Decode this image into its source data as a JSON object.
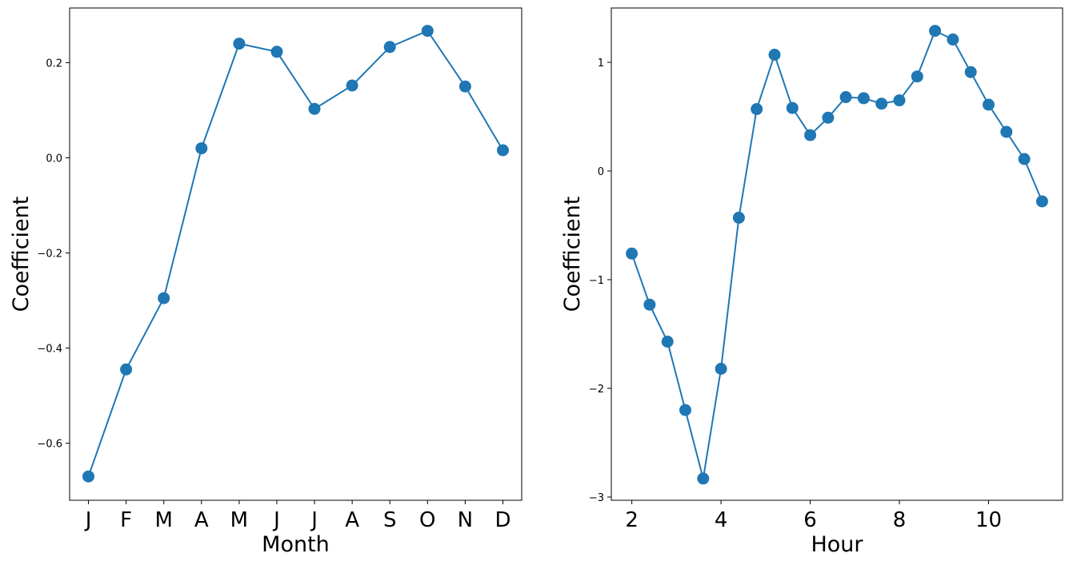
{
  "colors": {
    "series": "#1f77b4",
    "frame": "#000000",
    "background": "#ffffff"
  },
  "chart_data": [
    {
      "type": "line",
      "markers": "circle",
      "categories": [
        "J",
        "F",
        "M",
        "A",
        "M",
        "J",
        "J",
        "A",
        "S",
        "O",
        "N",
        "D"
      ],
      "values": [
        -0.67,
        -0.445,
        -0.295,
        0.02,
        0.24,
        0.223,
        0.103,
        0.152,
        0.233,
        0.267,
        0.15,
        0.016
      ],
      "xlabel": "Month",
      "ylabel": "Coefficient",
      "ylim": [
        -0.72,
        0.315
      ],
      "yticks": [
        -0.6,
        -0.4,
        -0.2,
        0.0,
        0.2
      ],
      "ytick_labels": [
        "−0.6",
        "−0.4",
        "−0.2",
        "0.0",
        "0.2"
      ],
      "grid": false
    },
    {
      "type": "line",
      "markers": "circle",
      "x": [
        2.0,
        2.4,
        2.8,
        3.2,
        3.6,
        4.0,
        4.4,
        4.8,
        5.2,
        5.6,
        6.0,
        6.4,
        6.8,
        7.2,
        7.6,
        8.0,
        8.4,
        8.8,
        9.2,
        9.6,
        10.0,
        10.4,
        10.8,
        11.2
      ],
      "values": [
        -0.76,
        -1.23,
        -1.57,
        -2.2,
        -2.83,
        -1.82,
        -0.43,
        0.57,
        1.07,
        0.58,
        0.33,
        0.49,
        0.68,
        0.67,
        0.62,
        0.65,
        0.87,
        1.29,
        1.21,
        0.91,
        0.61,
        0.36,
        0.11,
        -0.28
      ],
      "xlabel": "Hour",
      "ylabel": "Coefficient",
      "xlim": [
        1.54,
        11.66
      ],
      "ylim": [
        -3.03,
        1.5
      ],
      "xticks": [
        2,
        4,
        6,
        8,
        10
      ],
      "xtick_labels": [
        "2",
        "4",
        "6",
        "8",
        "10"
      ],
      "yticks": [
        -3,
        -2,
        -1,
        0,
        1
      ],
      "ytick_labels": [
        "−3",
        "−2",
        "−1",
        "0",
        "1"
      ],
      "grid": false
    }
  ]
}
